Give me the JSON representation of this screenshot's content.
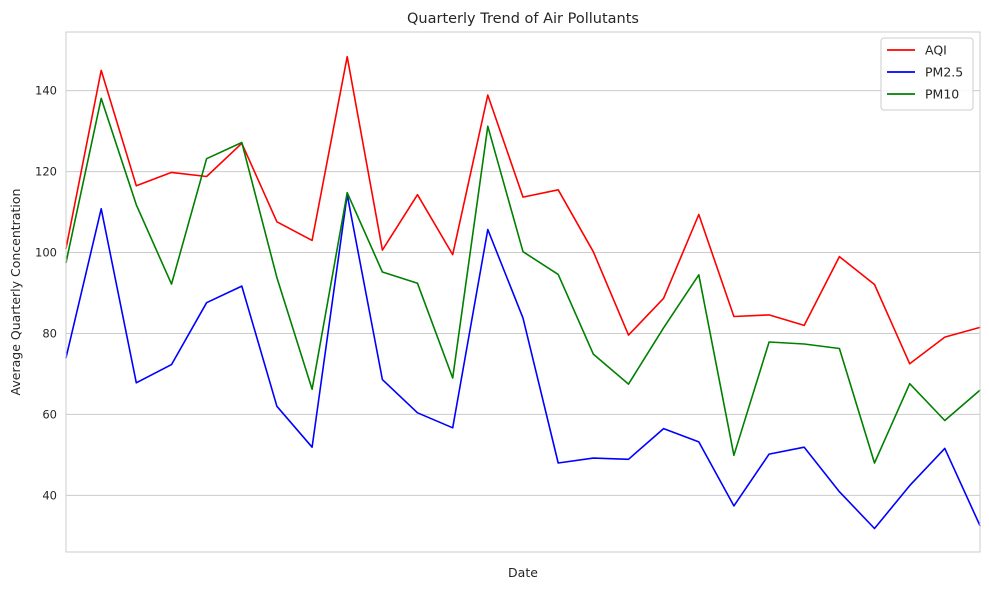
{
  "chart_data": {
    "type": "line",
    "title": "Quarterly Trend of Air Pollutants",
    "xlabel": "Date",
    "ylabel": "Average Quarterly Concentration",
    "ylim": [
      26,
      154.5
    ],
    "yticks": [
      40,
      60,
      80,
      100,
      120,
      140
    ],
    "grid": "horizontal",
    "legend_position": "top-right",
    "series": [
      {
        "name": "AQI",
        "color": "#ff0000",
        "values": [
          101,
          145,
          116.5,
          119.8,
          118.8,
          127,
          107.6,
          103,
          148.4,
          100.6,
          114.3,
          99.5,
          138.9,
          113.7,
          115.5,
          100.2,
          79.6,
          88.7,
          109.4,
          84.2,
          84.6,
          82,
          99,
          92.1,
          72.5,
          79.1,
          81.5
        ]
      },
      {
        "name": "PM2.5",
        "color": "#0000ff",
        "values": [
          74,
          110.8,
          67.8,
          72.3,
          87.6,
          91.7,
          62,
          51.9,
          114.3,
          68.6,
          60.4,
          56.7,
          105.7,
          83.8,
          48,
          49.2,
          48.9,
          56.5,
          53.2,
          37.4,
          50.2,
          51.9,
          40.9,
          31.8,
          42.4,
          51.6,
          32.5
        ]
      },
      {
        "name": "PM10",
        "color": "#008000",
        "values": [
          97.5,
          138.1,
          111.8,
          92.2,
          123.2,
          127.2,
          93.8,
          66.2,
          114.8,
          95.2,
          92.4,
          69,
          131.2,
          100.2,
          94.6,
          74.9,
          67.5,
          81.4,
          94.5,
          49.9,
          77.9,
          77.4,
          76.3,
          48,
          67.6,
          58.5,
          66
        ]
      }
    ]
  }
}
